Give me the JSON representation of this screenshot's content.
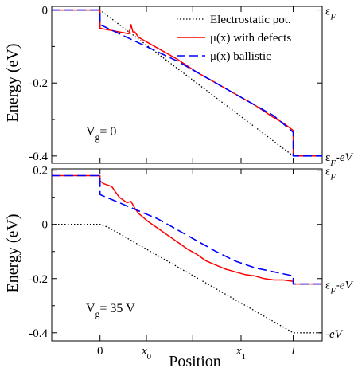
{
  "chart_data": [
    {
      "type": "line",
      "panel": "top",
      "annotation": "V_g= 0",
      "ylabel": "Energy (eV)",
      "ylim": [
        -0.42,
        0.01
      ],
      "yticks": [
        {
          "value": 0,
          "label": "0"
        },
        {
          "value": -0.2,
          "label": "-0.2"
        },
        {
          "value": -0.4,
          "label": "-0.4"
        }
      ],
      "right_labels": [
        {
          "value": 0,
          "label": "εF"
        },
        {
          "value": -0.4,
          "label": "εF-eV"
        }
      ],
      "xlim": [
        -0.25,
        1.15
      ],
      "legend_position": "top-right",
      "series": [
        {
          "name": "Electrostatic pot.",
          "style": "dotted",
          "color": "#000000",
          "x": [
            -0.25,
            0,
            1,
            1.15
          ],
          "y": [
            0,
            0,
            -0.4,
            -0.4
          ]
        },
        {
          "name": "μ(x) with defects",
          "style": "solid",
          "color": "#ff0000",
          "x": [
            -0.25,
            0,
            0,
            0.05,
            0.1,
            0.15,
            0.16,
            0.17,
            0.18,
            0.2,
            0.25,
            0.3,
            0.4,
            0.5,
            0.6,
            0.7,
            0.8,
            0.9,
            0.95,
            1,
            1,
            1.15
          ],
          "y": [
            0,
            0,
            -0.05,
            -0.055,
            -0.06,
            -0.065,
            -0.04,
            -0.06,
            -0.06,
            -0.075,
            -0.09,
            -0.105,
            -0.135,
            -0.17,
            -0.2,
            -0.23,
            -0.26,
            -0.295,
            -0.31,
            -0.33,
            -0.4,
            -0.4
          ]
        },
        {
          "name": "μ(x)    ballistic",
          "style": "dashed",
          "color": "#0000ff",
          "x": [
            -0.25,
            0,
            0,
            0.1,
            0.2,
            0.3,
            0.4,
            0.5,
            0.6,
            0.7,
            0.8,
            0.9,
            1,
            1,
            1.15
          ],
          "y": [
            0,
            0,
            -0.04,
            -0.065,
            -0.09,
            -0.115,
            -0.14,
            -0.17,
            -0.2,
            -0.23,
            -0.26,
            -0.29,
            -0.335,
            -0.4,
            -0.4
          ]
        }
      ]
    },
    {
      "type": "line",
      "panel": "bottom",
      "annotation": "V_g= 35 V",
      "ylabel": "Energy (eV)",
      "xlabel": "Position",
      "ylim": [
        -0.43,
        0.205
      ],
      "yticks": [
        {
          "value": 0.2,
          "label": "0.2"
        },
        {
          "value": 0,
          "label": "0"
        },
        {
          "value": -0.2,
          "label": "-0.2"
        },
        {
          "value": -0.4,
          "label": "-0.4"
        }
      ],
      "xticks": [
        {
          "value": 0,
          "label": "0"
        },
        {
          "value": 0.24,
          "label": "x0"
        },
        {
          "value": 0.73,
          "label": "x1"
        },
        {
          "value": 1,
          "label": "l"
        }
      ],
      "right_labels": [
        {
          "value": 0.2,
          "label": "εF"
        },
        {
          "value": -0.22,
          "label": "εF-eV"
        },
        {
          "value": -0.4,
          "label": "-eV"
        }
      ],
      "xlim": [
        -0.25,
        1.15
      ],
      "series": [
        {
          "name": "Electrostatic pot.",
          "style": "dotted",
          "color": "#000000",
          "x": [
            -0.25,
            0,
            0.04,
            1,
            1.15
          ],
          "y": [
            0,
            0,
            -0.01,
            -0.4,
            -0.4
          ]
        },
        {
          "name": "μ(x) with defects",
          "style": "solid",
          "color": "#ff0000",
          "x": [
            -0.25,
            0,
            0,
            0.02,
            0.04,
            0.06,
            0.08,
            0.1,
            0.12,
            0.14,
            0.16,
            0.18,
            0.2,
            0.25,
            0.3,
            0.35,
            0.4,
            0.45,
            0.5,
            0.55,
            0.6,
            0.65,
            0.7,
            0.75,
            0.8,
            0.85,
            0.9,
            0.95,
            1,
            1,
            1.15
          ],
          "y": [
            0.18,
            0.18,
            0.16,
            0.15,
            0.145,
            0.14,
            0.12,
            0.1,
            0.09,
            0.08,
            0.085,
            0.06,
            0.04,
            0.01,
            -0.015,
            -0.04,
            -0.065,
            -0.09,
            -0.11,
            -0.135,
            -0.15,
            -0.165,
            -0.175,
            -0.185,
            -0.19,
            -0.2,
            -0.205,
            -0.205,
            -0.21,
            -0.22,
            -0.22
          ]
        },
        {
          "name": "μ(x)    ballistic",
          "style": "dashed",
          "color": "#0000ff",
          "x": [
            -0.25,
            0,
            0,
            0.1,
            0.2,
            0.3,
            0.4,
            0.5,
            0.6,
            0.7,
            0.8,
            0.9,
            1,
            1,
            1.15
          ],
          "y": [
            0.18,
            0.18,
            0.11,
            0.08,
            0.05,
            0.02,
            -0.02,
            -0.06,
            -0.1,
            -0.135,
            -0.16,
            -0.175,
            -0.19,
            -0.22,
            -0.22
          ]
        }
      ]
    }
  ]
}
